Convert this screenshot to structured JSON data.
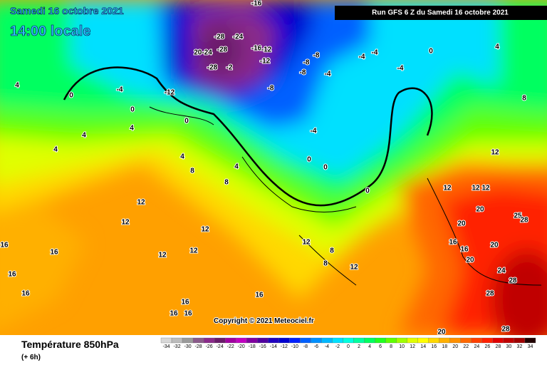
{
  "header": {
    "date": "Samedi 16 octobre 2021",
    "time": "14:00 locale",
    "run": "Run GFS 6 Z du Samedi 16 octobre 2021"
  },
  "footer": {
    "variable": "Température 850hPa",
    "lead": "(+ 6h)",
    "copyright": "Copyright © 2021 Meteociel.fr"
  },
  "legend": {
    "ticks": [
      -34,
      -32,
      -30,
      -28,
      -26,
      -24,
      -22,
      -20,
      -18,
      -16,
      -14,
      -12,
      -10,
      -8,
      -6,
      -4,
      -2,
      0,
      2,
      4,
      6,
      8,
      10,
      12,
      14,
      16,
      18,
      20,
      22,
      24,
      26,
      28,
      30,
      32,
      34
    ],
    "colors": [
      "#d8d8d8",
      "#bcbcbc",
      "#9a9a9a",
      "#8a5a8a",
      "#8a2a8a",
      "#6a1a6a",
      "#a000a0",
      "#c000c0",
      "#8000a0",
      "#5000a0",
      "#2000c0",
      "#0000d0",
      "#0020ff",
      "#0060ff",
      "#0090ff",
      "#00b8ff",
      "#00e0ff",
      "#00ffe0",
      "#00ffa0",
      "#00ff60",
      "#20ff20",
      "#60ff00",
      "#a0ff00",
      "#e0ff00",
      "#ffff00",
      "#ffd800",
      "#ffb000",
      "#ff9000",
      "#ff6800",
      "#ff4000",
      "#ff2000",
      "#e00000",
      "#c00000",
      "#a00000",
      "#200000"
    ]
  },
  "map_labels": [
    "-16",
    "-28",
    "-24",
    "-28",
    "20-24",
    "-28",
    "-2",
    "-16",
    "-12",
    "-12",
    "-8",
    "-8",
    "-8",
    "-4",
    "-4",
    "-4",
    "-4",
    "0",
    "4",
    "-4",
    "-12",
    "-8",
    "0",
    "0",
    "4",
    "8",
    "0",
    "4",
    "4",
    "-4",
    "4",
    "4",
    "8",
    "4",
    "0",
    "0",
    "0",
    "12",
    "12",
    "12",
    "12",
    "20",
    "12",
    "8",
    "12",
    "12",
    "12",
    "12",
    "16",
    "16",
    "16",
    "12",
    "8",
    "8",
    "12",
    "16",
    "16",
    "20",
    "20",
    "25",
    "28",
    "20",
    "24",
    "28",
    "28",
    "16",
    "16",
    "16",
    "16",
    "20",
    "28",
    "16"
  ]
}
